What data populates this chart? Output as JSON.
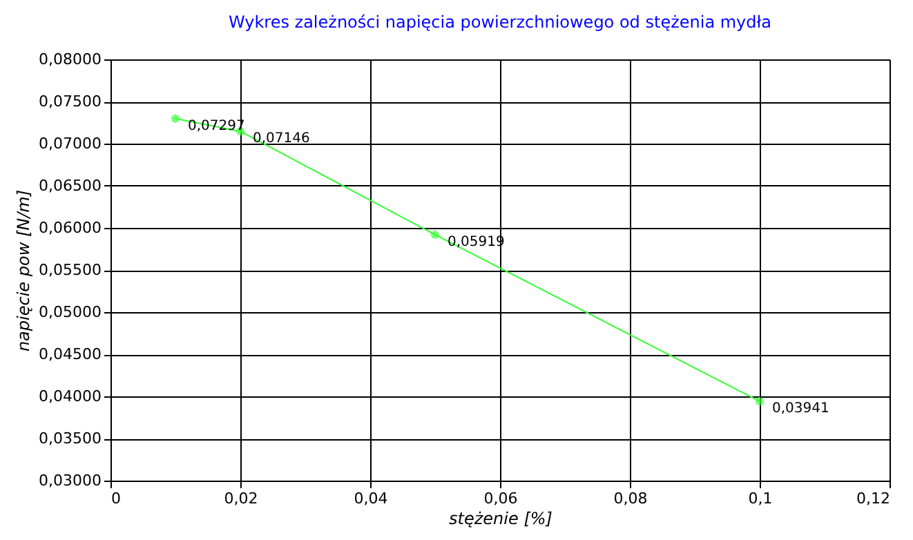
{
  "chart_data": {
    "type": "line",
    "title": "Wykres zależności napięcia powierzchniowego od stężenia mydła",
    "xlabel": "stężenie [%]",
    "ylabel": "napięcie pow [N/m]",
    "x": [
      0.01,
      0.02,
      0.05,
      0.1
    ],
    "series": [
      {
        "color": "#33ff33",
        "values": [
          0.07297,
          0.07146,
          0.05919,
          0.03941
        ],
        "value_labels": [
          "0,07297",
          "0,07146",
          "0,05919",
          "0,03941"
        ]
      }
    ],
    "xlim": [
      0,
      0.12
    ],
    "xticks": [
      {
        "value": 0,
        "label": "0"
      },
      {
        "value": 0.02,
        "label": "0,02"
      },
      {
        "value": 0.04,
        "label": "0,04"
      },
      {
        "value": 0.06,
        "label": "0,06"
      },
      {
        "value": 0.08,
        "label": "0,08"
      },
      {
        "value": 0.1,
        "label": "0,1"
      },
      {
        "value": 0.12,
        "label": "0,12"
      }
    ],
    "ylim": [
      0.03,
      0.08
    ],
    "yticks": [
      {
        "value": 0.03,
        "label": "0,03000"
      },
      {
        "value": 0.035,
        "label": "0,03500"
      },
      {
        "value": 0.04,
        "label": "0,04000"
      },
      {
        "value": 0.045,
        "label": "0,04500"
      },
      {
        "value": 0.05,
        "label": "0,05000"
      },
      {
        "value": 0.055,
        "label": "0,05500"
      },
      {
        "value": 0.06,
        "label": "0,06000"
      },
      {
        "value": 0.065,
        "label": "0,06500"
      },
      {
        "value": 0.07,
        "label": "0,07000"
      },
      {
        "value": 0.075,
        "label": "0,07500"
      },
      {
        "value": 0.08,
        "label": "0,08000"
      }
    ],
    "grid": true,
    "marker": "cross",
    "line_style": "solid"
  }
}
